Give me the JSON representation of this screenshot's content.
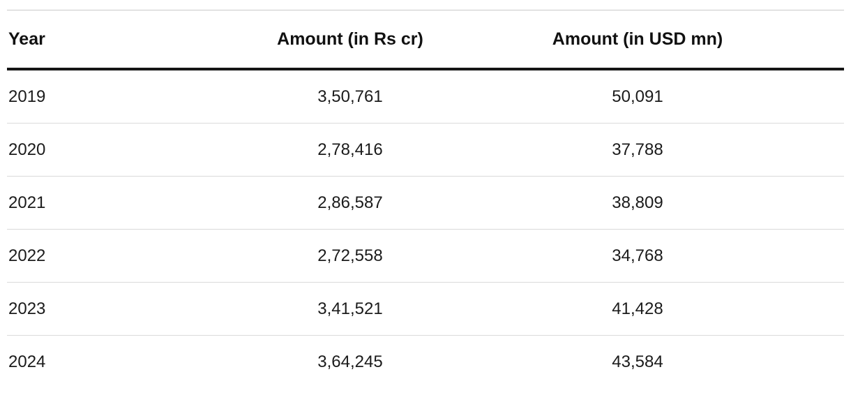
{
  "table": {
    "columns": [
      {
        "label": "Year"
      },
      {
        "label": "Amount (in Rs cr)"
      },
      {
        "label": "Amount (in USD mn)"
      }
    ],
    "rows": [
      [
        "2019",
        "3,50,761",
        "50,091"
      ],
      [
        "2020",
        "2,78,416",
        "37,788"
      ],
      [
        "2021",
        "2,86,587",
        "38,809"
      ],
      [
        "2022",
        "2,72,558",
        "34,768"
      ],
      [
        "2023",
        "3,41,521",
        "41,428"
      ],
      [
        "2024",
        "3,64,245",
        "43,584"
      ]
    ]
  },
  "chart_data": {
    "type": "table",
    "title": "",
    "columns": [
      "Year",
      "Amount (in Rs cr)",
      "Amount (in USD mn)"
    ],
    "categories": [
      "2019",
      "2020",
      "2021",
      "2022",
      "2023",
      "2024"
    ],
    "series": [
      {
        "name": "Amount (in Rs cr)",
        "values": [
          350761,
          278416,
          286587,
          272558,
          341521,
          364245
        ]
      },
      {
        "name": "Amount (in USD mn)",
        "values": [
          50091,
          37788,
          38809,
          34768,
          41428,
          43584
        ]
      }
    ],
    "rows": [
      [
        "2019",
        "3,50,761",
        "50,091"
      ],
      [
        "2020",
        "2,78,416",
        "37,788"
      ],
      [
        "2021",
        "2,86,587",
        "38,809"
      ],
      [
        "2022",
        "2,72,558",
        "34,768"
      ],
      [
        "2023",
        "3,41,521",
        "41,428"
      ],
      [
        "2024",
        "3,64,245",
        "43,584"
      ]
    ],
    "layout": {
      "grid": "horizontal-row-separators",
      "header_rule": "thick-black",
      "legend": "none"
    }
  },
  "colors": {
    "background": "#ffffff",
    "text": "#1b1b1b",
    "header_rule": "#161616",
    "row_separator": "#dadada"
  }
}
